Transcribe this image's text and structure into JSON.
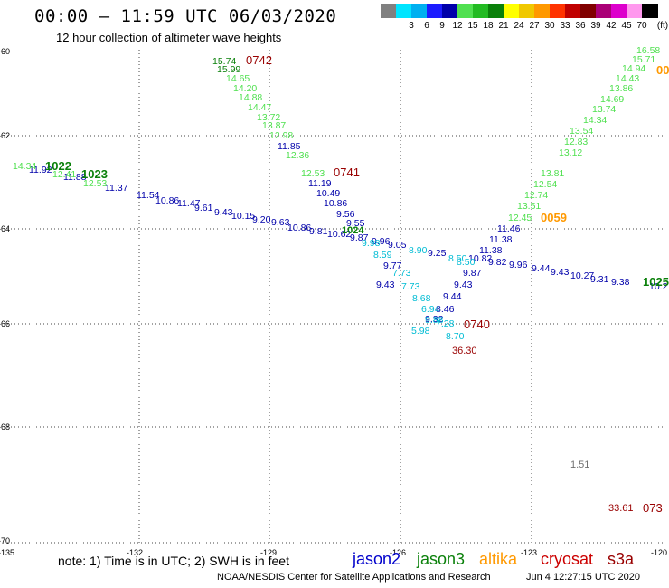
{
  "title": "00:00 — 11:59 UTC 06/03/2020",
  "subtitle": "12 hour collection of altimeter wave heights",
  "legend": {
    "unit": "(ft)",
    "items": [
      {
        "label": "",
        "color": "#808080"
      },
      {
        "label": "3",
        "color": "#00e5ff"
      },
      {
        "label": "6",
        "color": "#00b0f0"
      },
      {
        "label": "9",
        "color": "#1c1cff"
      },
      {
        "label": "12",
        "color": "#0000aa"
      },
      {
        "label": "15",
        "color": "#50e050"
      },
      {
        "label": "18",
        "color": "#22bb22"
      },
      {
        "label": "21",
        "color": "#0a800a"
      },
      {
        "label": "24",
        "color": "#ffff00"
      },
      {
        "label": "27",
        "color": "#f0c800"
      },
      {
        "label": "30",
        "color": "#ff9900"
      },
      {
        "label": "33",
        "color": "#ff3300"
      },
      {
        "label": "36",
        "color": "#c00000"
      },
      {
        "label": "39",
        "color": "#800000"
      },
      {
        "label": "42",
        "color": "#aa0077"
      },
      {
        "label": "45",
        "color": "#dd00cc"
      },
      {
        "label": "70",
        "color": "#ff99ee"
      },
      {
        "label": "",
        "color": "#000000"
      }
    ]
  },
  "axes": {
    "lon_labels": [
      "-135",
      "-132",
      "-129",
      "-126",
      "-123",
      "-120"
    ],
    "lat_labels": [
      "-60",
      "-62",
      "-64",
      "-66",
      "-68",
      "-70"
    ]
  },
  "colors": {
    "jason2": "#0000aa",
    "jason3": "#0a800a",
    "jason3_light": "#50e050",
    "cyan": "#00bcd4",
    "altika": "#ff9900",
    "cryosat": "#990000",
    "gray": "#707070"
  },
  "tracks": {
    "jason2_main": [
      "11.92",
      "11.88",
      "11.37",
      "11.54",
      "10.86",
      "11.47",
      "9.61",
      "9.43",
      "10.15",
      "9.20",
      "9.63",
      "10.86",
      "9.81",
      "10.62",
      "9.87",
      "9.96",
      "9.05",
      "9.25",
      "10.82",
      "9.82",
      "9.96",
      "9.44",
      "9.43",
      "10.27",
      "9.31",
      "9.38",
      "10.2"
    ],
    "jason3_light_a": [
      "15.74",
      "15.99",
      "14.65",
      "14.20",
      "14.88",
      "14.47",
      "13.72",
      "13.87",
      "12.98",
      "12.36",
      "12.53"
    ],
    "jason3_light_b": [
      "14.34",
      "12.41",
      "12.53",
      "12.45",
      "12.74",
      "12.54",
      "13.81",
      "13.12",
      "12.83",
      "13.54",
      "14.34",
      "13.74",
      "14.69",
      "13.86",
      "14.43",
      "14.94",
      "15.71",
      "16.58",
      "13.51"
    ],
    "jason2_diag_a": [
      "11.85",
      "11.19",
      "10.49",
      "10.86",
      "9.56",
      "9.55",
      "9.77",
      "9.43",
      "9.44",
      "8.46",
      "9.32"
    ],
    "jason2_diag_b": [
      "11.46",
      "11.38",
      "11.38",
      "9.87",
      "9.43"
    ],
    "cyan_track": [
      "8.50",
      "8.50",
      "8.90",
      "8.59",
      "7.73",
      "7.73",
      "8.68",
      "6.94",
      "7.28",
      "8.70",
      "5.98",
      "9.88",
      "9.98"
    ],
    "cryosat_vals": [
      "36.30",
      "33.61"
    ],
    "gray_vals": [
      "1.51"
    ]
  },
  "stations": {
    "s0742": "0742",
    "s0741": "0741",
    "s0740": "0740",
    "s0059": "0059",
    "s1022": "1022",
    "s1023": "1023",
    "s1024": "1024",
    "s1025": "1025",
    "s073": "073",
    "s00": "00"
  },
  "note": "note:  1) Time is in UTC;  2) SWH is in feet",
  "satellites": [
    {
      "name": "jason2",
      "color": "#0000cc"
    },
    {
      "name": "jason3",
      "color": "#0a800a"
    },
    {
      "name": "altika",
      "color": "#ff9900"
    },
    {
      "name": "cryosat",
      "color": "#cc0000"
    },
    {
      "name": "s3a",
      "color": "#990000"
    }
  ],
  "footer": {
    "credit": "NOAA/NESDIS Center for Satellite Applications and Research",
    "stamp": "Jun  4 12:27:15 UTC 2020"
  }
}
